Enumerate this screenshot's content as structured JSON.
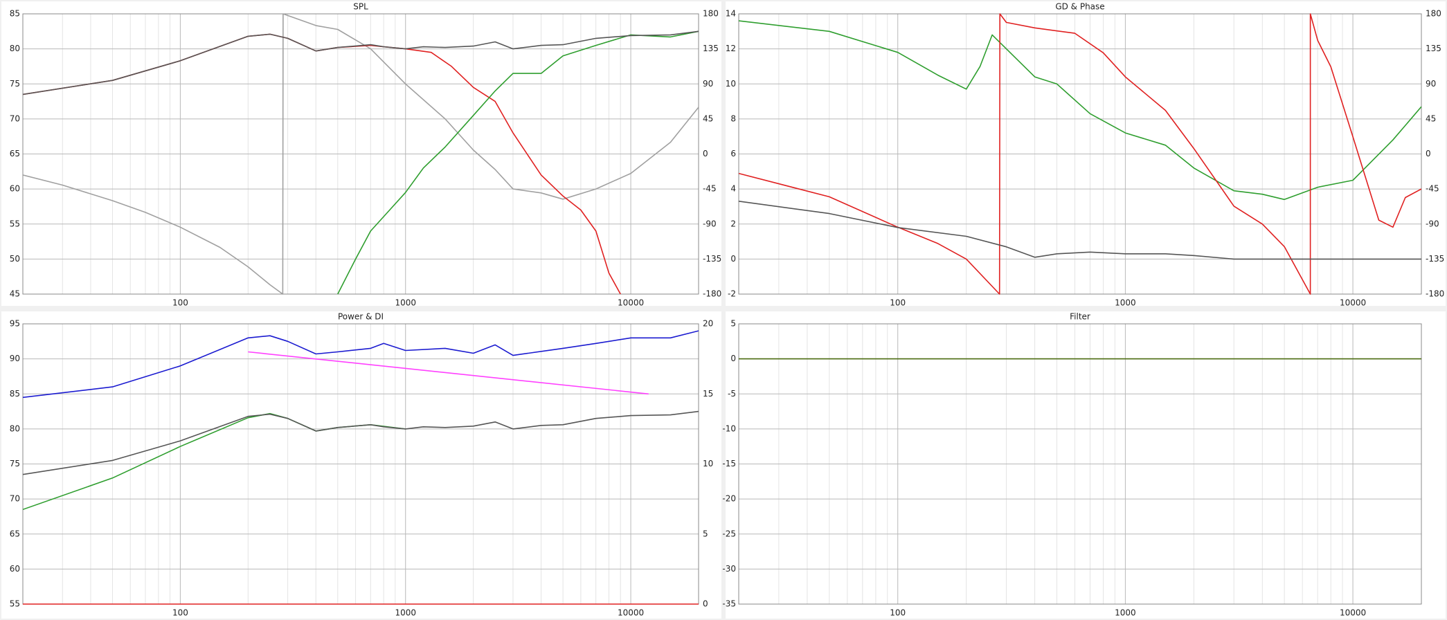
{
  "chart_data": [
    {
      "type": "line",
      "title": "SPL",
      "xscale": "log",
      "grid": true,
      "xlim": [
        20,
        20000
      ],
      "xticks": [
        100,
        1000,
        10000
      ],
      "ylim": [
        45,
        85
      ],
      "yticks": [
        45,
        50,
        55,
        60,
        65,
        70,
        75,
        80,
        85
      ],
      "y2lim": [
        -180,
        180
      ],
      "y2ticks": [
        -180,
        -135,
        -90,
        -45,
        0,
        45,
        90,
        135,
        180
      ],
      "series": [
        {
          "color": "#a0a0a0",
          "axis": "y2",
          "x": [
            20,
            30,
            50,
            70,
            100,
            150,
            200,
            250,
            285,
            286,
            400,
            500,
            700,
            1000,
            1500,
            2000,
            2500,
            3000,
            4000,
            5000,
            7000,
            10000,
            15000,
            20000
          ],
          "values": [
            -27,
            -40,
            -60,
            -75,
            -94,
            -120,
            -145,
            -168,
            -180,
            180,
            165,
            160,
            135,
            90,
            45,
            5,
            -20,
            -45,
            -50,
            -58,
            -45,
            -25,
            15,
            60
          ]
        },
        {
          "color": "#e02020",
          "x": [
            20,
            50,
            100,
            200,
            250,
            300,
            400,
            500,
            700,
            800,
            1000,
            1300,
            1600,
            2000,
            2500,
            3000,
            4000,
            5000,
            6000,
            7000,
            8000,
            9000
          ],
          "values": [
            73.5,
            75.5,
            78.3,
            81.8,
            82.1,
            81.5,
            79.7,
            80.2,
            80.5,
            80.3,
            80,
            79.5,
            77.5,
            74.5,
            72.5,
            68,
            62,
            59,
            57,
            54,
            48,
            45
          ]
        },
        {
          "color": "#2e9e2e",
          "x": [
            500,
            600,
            700,
            850,
            1000,
            1200,
            1500,
            2000,
            2500,
            3000,
            4000,
            5000,
            7000,
            10000,
            15000,
            20000
          ],
          "values": [
            45,
            50,
            54,
            57,
            59.5,
            63,
            66,
            70.5,
            74,
            76.5,
            76.5,
            79,
            80.5,
            82,
            81.7,
            82.5
          ]
        },
        {
          "color": "#555555",
          "x": [
            20,
            50,
            100,
            200,
            250,
            300,
            400,
            500,
            700,
            800,
            1000,
            1200,
            1500,
            2000,
            2500,
            3000,
            4000,
            5000,
            7000,
            10000,
            15000,
            20000
          ],
          "values": [
            73.5,
            75.5,
            78.3,
            81.8,
            82.1,
            81.5,
            79.7,
            80.2,
            80.6,
            80.3,
            80,
            80.3,
            80.2,
            80.4,
            81,
            80,
            80.5,
            80.6,
            81.5,
            81.9,
            82,
            82.5
          ]
        }
      ]
    },
    {
      "type": "line",
      "title": "GD & Phase",
      "xscale": "log",
      "grid": true,
      "xlim": [
        20,
        20000
      ],
      "xticks": [
        100,
        1000,
        10000
      ],
      "ylim": [
        -2,
        14
      ],
      "yticks": [
        -2,
        0,
        2,
        4,
        6,
        8,
        10,
        12,
        14
      ],
      "y2lim": [
        -180,
        180
      ],
      "y2ticks": [
        -180,
        -135,
        -90,
        -45,
        0,
        45,
        90,
        135,
        180
      ],
      "series": [
        {
          "color": "#2e9e2e",
          "x": [
            20,
            50,
            100,
            150,
            200,
            230,
            260,
            300,
            400,
            500,
            700,
            1000,
            1500,
            2000,
            3000,
            4000,
            5000,
            7000,
            10000,
            15000,
            20000
          ],
          "values": [
            13.6,
            13,
            11.8,
            10.5,
            9.7,
            11,
            12.8,
            12,
            10.4,
            10,
            8.3,
            7.2,
            6.5,
            5.2,
            3.9,
            3.7,
            3.4,
            4.1,
            4.5,
            6.8,
            8.7
          ]
        },
        {
          "color": "#e02020",
          "axis": "y2",
          "x": [
            20,
            50,
            100,
            150,
            200,
            280,
            281,
            300,
            400,
            600,
            800,
            1000,
            1500,
            2000,
            3000,
            4000,
            5000,
            6500,
            6501,
            7000,
            8000,
            10000,
            13000,
            15000,
            17000,
            20000
          ],
          "values": [
            -25,
            -55,
            -94,
            -115,
            -135,
            -180,
            180,
            169,
            162,
            155,
            130,
            99,
            56,
            7,
            -67,
            -90,
            -119,
            -180,
            180,
            146,
            112,
            22,
            -85,
            -94,
            -56,
            -45
          ]
        },
        {
          "color": "#555555",
          "x": [
            20,
            50,
            100,
            200,
            300,
            400,
            500,
            700,
            1000,
            1500,
            2000,
            3000,
            10000,
            20000
          ],
          "values": [
            3.3,
            2.6,
            1.8,
            1.3,
            0.7,
            0.1,
            0.3,
            0.4,
            0.3,
            0.3,
            0.2,
            0,
            0,
            0
          ]
        }
      ]
    },
    {
      "type": "line",
      "title": "Power & DI",
      "xscale": "log",
      "grid": true,
      "xlim": [
        20,
        20000
      ],
      "xticks": [
        100,
        1000,
        10000
      ],
      "ylim": [
        55,
        95
      ],
      "yticks": [
        55,
        60,
        65,
        70,
        75,
        80,
        85,
        90,
        95
      ],
      "y2lim": [
        0,
        20
      ],
      "y2ticks": [
        0,
        5,
        10,
        15,
        20
      ],
      "series": [
        {
          "color": "#e02020",
          "x": [
            20,
            20000
          ],
          "values": [
            55,
            55
          ]
        },
        {
          "color": "#2e9e2e",
          "x": [
            20,
            50,
            100,
            200,
            250,
            300,
            400,
            500,
            700,
            1000
          ],
          "values": [
            68.5,
            73,
            77.5,
            81.6,
            82.2,
            81.5,
            79.7,
            80.2,
            80.6,
            80
          ]
        },
        {
          "color": "#555555",
          "x": [
            20,
            50,
            100,
            200,
            250,
            300,
            400,
            500,
            700,
            800,
            1000,
            1200,
            1500,
            2000,
            2500,
            3000,
            4000,
            5000,
            7000,
            10000,
            15000,
            20000
          ],
          "values": [
            73.5,
            75.5,
            78.3,
            81.8,
            82.1,
            81.5,
            79.7,
            80.2,
            80.6,
            80.3,
            80,
            80.3,
            80.2,
            80.4,
            81,
            80,
            80.5,
            80.6,
            81.5,
            81.9,
            82,
            82.5
          ]
        },
        {
          "color": "#ff40ff",
          "axis": "y2",
          "x": [
            200,
            12000
          ],
          "values": [
            18,
            15
          ]
        },
        {
          "color": "#1a1ad0",
          "x": [
            20,
            50,
            100,
            200,
            250,
            300,
            400,
            500,
            700,
            800,
            1000,
            1500,
            2000,
            2500,
            3000,
            5000,
            7000,
            10000,
            15000,
            20000
          ],
          "values": [
            84.5,
            86,
            89,
            93,
            93.3,
            92.5,
            90.7,
            91,
            91.5,
            92.2,
            91.2,
            91.5,
            90.8,
            92,
            90.5,
            91.5,
            92.2,
            93,
            93,
            94
          ]
        }
      ]
    },
    {
      "type": "line",
      "title": "Filter",
      "xscale": "log",
      "grid": true,
      "xlim": [
        20,
        20000
      ],
      "xticks": [
        100,
        1000,
        10000
      ],
      "ylim": [
        -35,
        5
      ],
      "yticks": [
        -35,
        -30,
        -25,
        -20,
        -15,
        -10,
        -5,
        0,
        5
      ],
      "series": [
        {
          "color": "#4a6b10",
          "x": [
            20,
            20000
          ],
          "values": [
            0,
            0
          ]
        }
      ]
    }
  ]
}
